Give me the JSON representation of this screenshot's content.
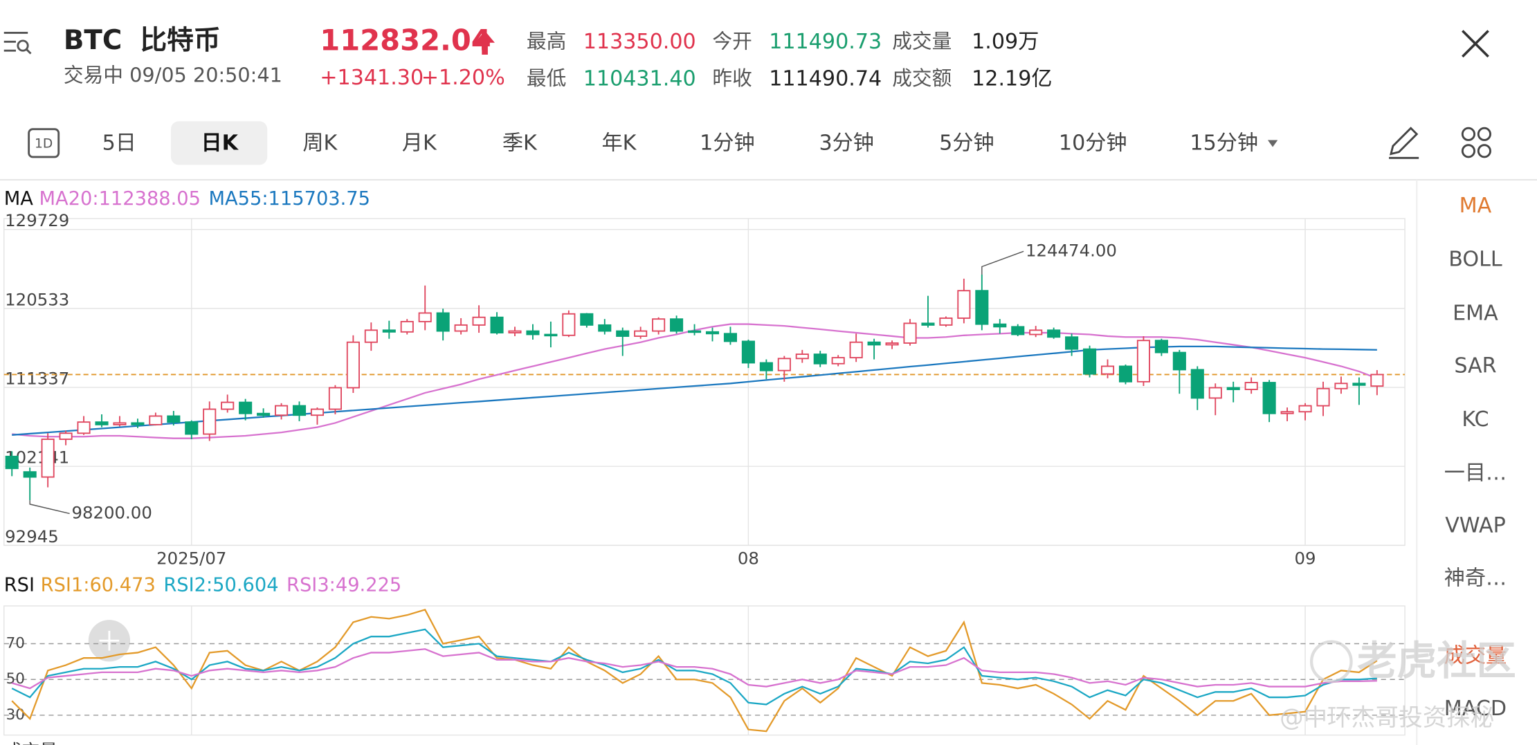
{
  "header": {
    "symbol": "BTC",
    "name": "比特币",
    "status": "交易中 09/05 20:50:41",
    "price": "112832.04",
    "change": "+1341.30",
    "change_pct": "+1.20%",
    "stats": [
      {
        "label": "最高",
        "value": "113350.00"
      },
      {
        "label": "今开",
        "value": "111490.73"
      },
      {
        "label": "成交量",
        "value": "1.09万"
      },
      {
        "label": "最低",
        "value": "110431.40"
      },
      {
        "label": "昨收",
        "value": "111490.74"
      },
      {
        "label": "成交额",
        "value": "12.19亿"
      }
    ]
  },
  "tabs_icon": "1D",
  "tabs": [
    "5日",
    "日K",
    "周K",
    "月K",
    "季K",
    "年K",
    "1分钟",
    "3分钟",
    "5分钟",
    "10分钟",
    "15分钟"
  ],
  "side_menu": [
    "MA",
    "BOLL",
    "EMA",
    "SAR",
    "KC",
    "一目…",
    "VWAP",
    "神奇…",
    "成交量",
    "MACD"
  ],
  "watermark": {
    "brand": "老虎社区",
    "author": "@中环杰哥投资探秘"
  },
  "bottom_label": "成交量",
  "chart_data": [
    {
      "type": "candlestick",
      "title": "MA",
      "up_color": "#e0475f",
      "down_color": "#0aa377",
      "categories": [
        null,
        null,
        null,
        null,
        null,
        null,
        null,
        null,
        null,
        null,
        "2025/07",
        null,
        null,
        null,
        null,
        null,
        null,
        null,
        null,
        null,
        null,
        null,
        null,
        null,
        null,
        null,
        null,
        null,
        null,
        null,
        null,
        null,
        null,
        null,
        null,
        null,
        null,
        null,
        null,
        null,
        null,
        "08",
        null,
        null,
        null,
        null,
        null,
        null,
        null,
        null,
        null,
        null,
        null,
        null,
        null,
        null,
        null,
        null,
        null,
        null,
        null,
        null,
        null,
        null,
        null,
        null,
        null,
        null,
        null,
        null,
        null,
        null,
        "09",
        null,
        null,
        null,
        null
      ],
      "candles": [
        [
          103300,
          103900,
          101000,
          101900
        ],
        [
          101500,
          102000,
          98200,
          100900
        ],
        [
          100900,
          106000,
          99700,
          105300
        ],
        [
          105300,
          106300,
          104600,
          106000
        ],
        [
          106000,
          108000,
          105800,
          107300
        ],
        [
          107300,
          108200,
          106700,
          107000
        ],
        [
          107000,
          108000,
          106800,
          107200
        ],
        [
          107200,
          107700,
          106600,
          107000
        ],
        [
          107000,
          108400,
          106900,
          108000
        ],
        [
          108000,
          108600,
          106900,
          107300
        ],
        [
          107300,
          107500,
          105300,
          105900
        ],
        [
          105900,
          109700,
          105100,
          108800
        ],
        [
          108800,
          110500,
          108400,
          109600
        ],
        [
          109600,
          110000,
          107500,
          108300
        ],
        [
          108300,
          108900,
          107800,
          108100
        ],
        [
          108100,
          109500,
          107600,
          109200
        ],
        [
          109200,
          109700,
          107400,
          108100
        ],
        [
          108100,
          109000,
          107000,
          108800
        ],
        [
          108800,
          111600,
          108200,
          111300
        ],
        [
          111300,
          117400,
          110700,
          116600
        ],
        [
          116600,
          118900,
          115600,
          118000
        ],
        [
          118000,
          119100,
          117000,
          117800
        ],
        [
          117800,
          119300,
          117500,
          119000
        ],
        [
          119000,
          123200,
          118000,
          120000
        ],
        [
          120000,
          120500,
          116800,
          117900
        ],
        [
          117900,
          119400,
          117500,
          118600
        ],
        [
          118600,
          120900,
          117700,
          119500
        ],
        [
          119500,
          120100,
          117500,
          117700
        ],
        [
          117700,
          118400,
          117300,
          117900
        ],
        [
          117900,
          118700,
          116900,
          117500
        ],
        [
          117500,
          119000,
          116000,
          117400
        ],
        [
          117400,
          120300,
          117200,
          119900
        ],
        [
          119900,
          120000,
          118300,
          118600
        ],
        [
          118600,
          119300,
          117500,
          117900
        ],
        [
          117900,
          118300,
          115000,
          117300
        ],
        [
          117300,
          118400,
          117000,
          117900
        ],
        [
          117900,
          119500,
          117500,
          119300
        ],
        [
          119300,
          119700,
          117600,
          117900
        ],
        [
          117900,
          118700,
          117400,
          117800
        ],
        [
          117800,
          118300,
          116700,
          117600
        ],
        [
          117600,
          118400,
          116300,
          116700
        ],
        [
          116700,
          116900,
          113600,
          114200
        ],
        [
          114200,
          114600,
          112300,
          113300
        ],
        [
          113300,
          115000,
          112000,
          114700
        ],
        [
          114700,
          115700,
          114200,
          115200
        ],
        [
          115200,
          115600,
          113700,
          114100
        ],
        [
          114100,
          115100,
          113800,
          114800
        ],
        [
          114800,
          117600,
          114300,
          116600
        ],
        [
          116600,
          117000,
          114600,
          116300
        ],
        [
          116300,
          116800,
          115800,
          116500
        ],
        [
          116500,
          119300,
          116200,
          118800
        ],
        [
          118800,
          122000,
          118300,
          118600
        ],
        [
          118600,
          119600,
          118400,
          119400
        ],
        [
          119400,
          124000,
          118800,
          122600
        ],
        [
          122600,
          124474,
          118000,
          118700
        ],
        [
          118700,
          119300,
          117600,
          118400
        ],
        [
          118400,
          118700,
          117300,
          117500
        ],
        [
          117500,
          118500,
          117200,
          118000
        ],
        [
          118000,
          118300,
          117000,
          117200
        ],
        [
          117200,
          117600,
          115000,
          115800
        ],
        [
          115800,
          116200,
          112500,
          112900
        ],
        [
          112900,
          114600,
          112400,
          113800
        ],
        [
          113800,
          114000,
          111700,
          112000
        ],
        [
          112000,
          117300,
          111500,
          116800
        ],
        [
          116800,
          117000,
          115000,
          115400
        ],
        [
          115400,
          115700,
          110600,
          113400
        ],
        [
          113400,
          113800,
          108700,
          110100
        ],
        [
          110100,
          111800,
          108100,
          111300
        ],
        [
          111300,
          112000,
          109600,
          111100
        ],
        [
          111100,
          112500,
          110600,
          111900
        ],
        [
          111900,
          112200,
          107300,
          108300
        ],
        [
          108300,
          109000,
          107400,
          108500
        ],
        [
          108500,
          109500,
          107500,
          109200
        ],
        [
          109200,
          112000,
          108000,
          111200
        ],
        [
          111200,
          112600,
          110600,
          111800
        ],
        [
          111800,
          112500,
          109300,
          111600
        ],
        [
          111490.73,
          113350,
          110431.4,
          112832.04
        ]
      ],
      "high_label": "124474.00",
      "low_label": "98200.00",
      "series": [
        {
          "name": "MA20:112388.05",
          "color": "#d772cf",
          "values": [
            105900,
            105700,
            105600,
            105600,
            105600,
            105700,
            105700,
            105600,
            105500,
            105400,
            105400,
            105500,
            105600,
            105700,
            105900,
            106100,
            106400,
            106700,
            107200,
            107900,
            108600,
            109300,
            110000,
            110700,
            111200,
            111700,
            112300,
            112800,
            113300,
            113800,
            114300,
            114800,
            115300,
            115800,
            116200,
            116600,
            117100,
            117500,
            118000,
            118400,
            118700,
            118700,
            118600,
            118500,
            118300,
            118100,
            117900,
            117700,
            117500,
            117300,
            117100,
            117100,
            117200,
            117400,
            117500,
            117600,
            117700,
            117700,
            117700,
            117600,
            117500,
            117300,
            117200,
            117200,
            117200,
            117100,
            116900,
            116600,
            116300,
            116000,
            115600,
            115200,
            114800,
            114300,
            113800,
            113200,
            112388.05
          ]
        },
        {
          "name": "MA55:115703.75",
          "color": "#1b78bf",
          "values": [
            105800,
            105950,
            106100,
            106250,
            106400,
            106550,
            106700,
            106850,
            107000,
            107150,
            107300,
            107450,
            107600,
            107750,
            107900,
            108050,
            108200,
            108350,
            108500,
            108650,
            108800,
            108950,
            109100,
            109250,
            109400,
            109550,
            109700,
            109850,
            110000,
            110150,
            110300,
            110450,
            110600,
            110750,
            110900,
            111050,
            111200,
            111350,
            111500,
            111650,
            111800,
            111995,
            112190,
            112385,
            112580,
            112775,
            112970,
            113165,
            113360,
            113555,
            113750,
            113945,
            114140,
            114335,
            114530,
            114725,
            114920,
            115115,
            115310,
            115505,
            115700,
            115800,
            115900,
            116000,
            116050,
            116100,
            116100,
            116100,
            116050,
            116000,
            115950,
            115900,
            115850,
            115800,
            115780,
            115740,
            115703.75
          ]
        }
      ],
      "ylim": [
        92945,
        129729
      ],
      "yticks": [
        92945,
        102141,
        111337,
        120533,
        129729
      ],
      "grid": true,
      "last_price_color": "#e0962a"
    },
    {
      "type": "line",
      "title": "RSI",
      "ylim": [
        20,
        90
      ],
      "yticks": [
        30,
        50,
        70
      ],
      "grid": true,
      "series": [
        {
          "name": "RSI1:60.473",
          "color": "#e39a2a",
          "values": [
            38,
            28,
            55,
            58,
            62,
            62,
            64,
            65,
            68,
            58,
            45,
            65,
            66,
            58,
            55,
            60,
            55,
            60,
            68,
            82,
            85,
            84,
            86,
            89,
            70,
            72,
            74,
            62,
            61,
            58,
            56,
            68,
            60,
            55,
            48,
            53,
            63,
            50,
            50,
            48,
            40,
            22,
            21,
            38,
            45,
            37,
            45,
            62,
            57,
            52,
            68,
            63,
            66,
            82,
            48,
            47,
            45,
            47,
            42,
            36,
            28,
            38,
            33,
            52,
            45,
            38,
            30,
            38,
            38,
            42,
            30,
            31,
            32,
            50,
            55,
            54,
            60.473
          ]
        },
        {
          "name": "RSI2:50.604",
          "color": "#1ba7c4",
          "values": [
            45,
            40,
            52,
            54,
            56,
            56,
            57,
            57,
            60,
            56,
            50,
            58,
            60,
            56,
            55,
            57,
            55,
            57,
            62,
            70,
            74,
            74,
            76,
            78,
            68,
            69,
            70,
            63,
            62,
            61,
            60,
            65,
            61,
            58,
            54,
            56,
            61,
            55,
            55,
            53,
            48,
            37,
            36,
            42,
            46,
            42,
            46,
            56,
            55,
            53,
            60,
            59,
            61,
            68,
            52,
            51,
            50,
            51,
            49,
            46,
            40,
            44,
            41,
            50,
            48,
            44,
            40,
            43,
            43,
            45,
            40,
            40,
            41,
            47,
            50,
            50,
            50.604
          ]
        },
        {
          "name": "RSI3:49.225",
          "color": "#d772cf",
          "values": [
            48,
            45,
            51,
            52,
            53,
            54,
            54,
            54,
            56,
            55,
            52,
            55,
            56,
            55,
            54,
            55,
            54,
            55,
            57,
            62,
            65,
            65,
            66,
            67,
            63,
            64,
            65,
            61,
            61,
            60,
            60,
            62,
            60,
            59,
            57,
            58,
            60,
            57,
            57,
            56,
            53,
            47,
            46,
            48,
            50,
            48,
            50,
            55,
            54,
            53,
            57,
            57,
            58,
            62,
            55,
            54,
            54,
            54,
            53,
            51,
            48,
            49,
            47,
            51,
            50,
            48,
            46,
            47,
            47,
            48,
            46,
            46,
            46,
            48,
            49,
            49,
            49.225
          ]
        }
      ]
    }
  ]
}
